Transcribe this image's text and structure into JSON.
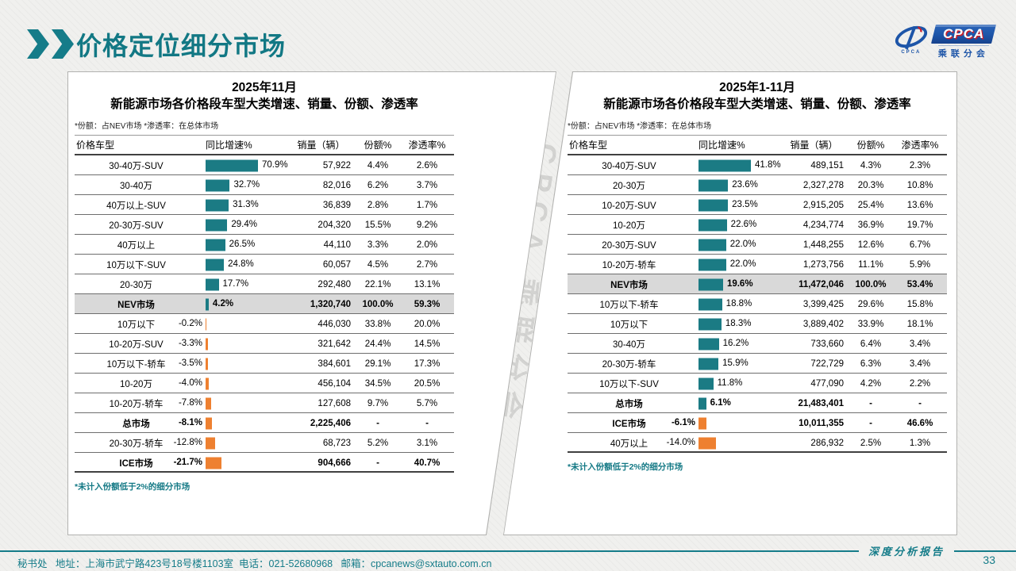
{
  "slide": {
    "title": "价格定位细分市场",
    "watermark": "CPCA 乘联分会",
    "report_label": "深度分析报告",
    "page_number": "33",
    "footer_text": "秘书处   地址：上海市武宁路423号18号楼1103室  电话：021-52680968   邮箱：cpcanews@sxtauto.com.cn"
  },
  "logo": {
    "cpca": "CPCA",
    "cn": "乘联分会",
    "emblem_sub": "CPCA"
  },
  "colors": {
    "positive_bar": "#1b7b84",
    "negative_bar": "#ee8030",
    "accent_teal": "#127884",
    "highlight_row": "#d9d9d9"
  },
  "columns": [
    "价格车型",
    "同比增速%",
    "销量（辆）",
    "份额%",
    "渗透率%"
  ],
  "shared_note": "*份额：占NEV市场   *渗透率：在总体市场",
  "footnote": "*未计入份额低于2%的细分市场",
  "tables": [
    {
      "id": "left",
      "title_line1": "2025年11月",
      "title_line2": "新能源市场各价格段车型大类增速、销量、份额、渗透率",
      "rows": [
        {
          "label": "30-40万-SUV",
          "growth": 70.9,
          "growth_label": "70.9%",
          "sales": "57,922",
          "share": "4.4%",
          "pen": "2.6%",
          "bold": false,
          "highlight": false
        },
        {
          "label": "30-40万",
          "growth": 32.7,
          "growth_label": "32.7%",
          "sales": "82,016",
          "share": "6.2%",
          "pen": "3.7%",
          "bold": false,
          "highlight": false
        },
        {
          "label": "40万以上-SUV",
          "growth": 31.3,
          "growth_label": "31.3%",
          "sales": "36,839",
          "share": "2.8%",
          "pen": "1.7%",
          "bold": false,
          "highlight": false
        },
        {
          "label": "20-30万-SUV",
          "growth": 29.4,
          "growth_label": "29.4%",
          "sales": "204,320",
          "share": "15.5%",
          "pen": "9.2%",
          "bold": false,
          "highlight": false
        },
        {
          "label": "40万以上",
          "growth": 26.5,
          "growth_label": "26.5%",
          "sales": "44,110",
          "share": "3.3%",
          "pen": "2.0%",
          "bold": false,
          "highlight": false
        },
        {
          "label": "10万以下-SUV",
          "growth": 24.8,
          "growth_label": "24.8%",
          "sales": "60,057",
          "share": "4.5%",
          "pen": "2.7%",
          "bold": false,
          "highlight": false
        },
        {
          "label": "20-30万",
          "growth": 17.7,
          "growth_label": "17.7%",
          "sales": "292,480",
          "share": "22.1%",
          "pen": "13.1%",
          "bold": false,
          "highlight": false
        },
        {
          "label": "NEV市场",
          "growth": 4.2,
          "growth_label": "4.2%",
          "sales": "1,320,740",
          "share": "100.0%",
          "pen": "59.3%",
          "bold": true,
          "highlight": true
        },
        {
          "label": "10万以下",
          "growth": -0.2,
          "growth_label": "-0.2%",
          "sales": "446,030",
          "share": "33.8%",
          "pen": "20.0%",
          "bold": false,
          "highlight": false
        },
        {
          "label": "10-20万-SUV",
          "growth": -3.3,
          "growth_label": "-3.3%",
          "sales": "321,642",
          "share": "24.4%",
          "pen": "14.5%",
          "bold": false,
          "highlight": false
        },
        {
          "label": "10万以下-轿车",
          "growth": -3.5,
          "growth_label": "-3.5%",
          "sales": "384,601",
          "share": "29.1%",
          "pen": "17.3%",
          "bold": false,
          "highlight": false
        },
        {
          "label": "10-20万",
          "growth": -4.0,
          "growth_label": "-4.0%",
          "sales": "456,104",
          "share": "34.5%",
          "pen": "20.5%",
          "bold": false,
          "highlight": false
        },
        {
          "label": "10-20万-轿车",
          "growth": -7.8,
          "growth_label": "-7.8%",
          "sales": "127,608",
          "share": "9.7%",
          "pen": "5.7%",
          "bold": false,
          "highlight": false
        },
        {
          "label": "总市场",
          "growth": -8.1,
          "growth_label": "-8.1%",
          "sales": "2,225,406",
          "share": "-",
          "pen": "-",
          "bold": true,
          "highlight": false
        },
        {
          "label": "20-30万-轿车",
          "growth": -12.8,
          "growth_label": "-12.8%",
          "sales": "68,723",
          "share": "5.2%",
          "pen": "3.1%",
          "bold": false,
          "highlight": false
        },
        {
          "label": "ICE市场",
          "growth": -21.7,
          "growth_label": "-21.7%",
          "sales": "904,666",
          "share": "-",
          "pen": "40.7%",
          "bold": true,
          "highlight": false
        }
      ]
    },
    {
      "id": "right",
      "title_line1": "2025年1-11月",
      "title_line2": "新能源市场各价格段车型大类增速、销量、份额、渗透率",
      "rows": [
        {
          "label": "30-40万-SUV",
          "growth": 41.8,
          "growth_label": "41.8%",
          "sales": "489,151",
          "share": "4.3%",
          "pen": "2.3%",
          "bold": false,
          "highlight": false
        },
        {
          "label": "20-30万",
          "growth": 23.6,
          "growth_label": "23.6%",
          "sales": "2,327,278",
          "share": "20.3%",
          "pen": "10.8%",
          "bold": false,
          "highlight": false
        },
        {
          "label": "10-20万-SUV",
          "growth": 23.5,
          "growth_label": "23.5%",
          "sales": "2,915,205",
          "share": "25.4%",
          "pen": "13.6%",
          "bold": false,
          "highlight": false
        },
        {
          "label": "10-20万",
          "growth": 22.6,
          "growth_label": "22.6%",
          "sales": "4,234,774",
          "share": "36.9%",
          "pen": "19.7%",
          "bold": false,
          "highlight": false
        },
        {
          "label": "20-30万-SUV",
          "growth": 22.0,
          "growth_label": "22.0%",
          "sales": "1,448,255",
          "share": "12.6%",
          "pen": "6.7%",
          "bold": false,
          "highlight": false
        },
        {
          "label": "10-20万-轿车",
          "growth": 22.0,
          "growth_label": "22.0%",
          "sales": "1,273,756",
          "share": "11.1%",
          "pen": "5.9%",
          "bold": false,
          "highlight": false
        },
        {
          "label": "NEV市场",
          "growth": 19.6,
          "growth_label": "19.6%",
          "sales": "11,472,046",
          "share": "100.0%",
          "pen": "53.4%",
          "bold": true,
          "highlight": true
        },
        {
          "label": "10万以下-轿车",
          "growth": 18.8,
          "growth_label": "18.8%",
          "sales": "3,399,425",
          "share": "29.6%",
          "pen": "15.8%",
          "bold": false,
          "highlight": false
        },
        {
          "label": "10万以下",
          "growth": 18.3,
          "growth_label": "18.3%",
          "sales": "3,889,402",
          "share": "33.9%",
          "pen": "18.1%",
          "bold": false,
          "highlight": false
        },
        {
          "label": "30-40万",
          "growth": 16.2,
          "growth_label": "16.2%",
          "sales": "733,660",
          "share": "6.4%",
          "pen": "3.4%",
          "bold": false,
          "highlight": false
        },
        {
          "label": "20-30万-轿车",
          "growth": 15.9,
          "growth_label": "15.9%",
          "sales": "722,729",
          "share": "6.3%",
          "pen": "3.4%",
          "bold": false,
          "highlight": false
        },
        {
          "label": "10万以下-SUV",
          "growth": 11.8,
          "growth_label": "11.8%",
          "sales": "477,090",
          "share": "4.2%",
          "pen": "2.2%",
          "bold": false,
          "highlight": false
        },
        {
          "label": "总市场",
          "growth": 6.1,
          "growth_label": "6.1%",
          "sales": "21,483,401",
          "share": "-",
          "pen": "-",
          "bold": true,
          "highlight": false
        },
        {
          "label": "ICE市场",
          "growth": -6.1,
          "growth_label": "-6.1%",
          "sales": "10,011,355",
          "share": "-",
          "pen": "46.6%",
          "bold": true,
          "highlight": false
        },
        {
          "label": "40万以上",
          "growth": -14.0,
          "growth_label": "-14.0%",
          "sales": "286,932",
          "share": "2.5%",
          "pen": "1.3%",
          "bold": false,
          "highlight": false
        }
      ]
    }
  ]
}
